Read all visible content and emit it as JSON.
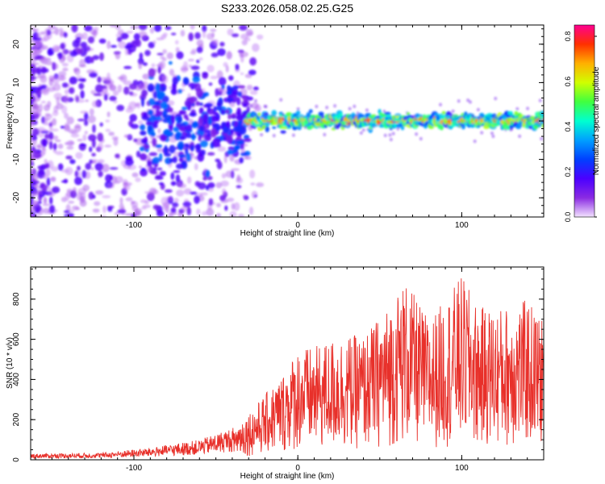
{
  "title": "S233.2026.058.02.25.G25",
  "colormap": [
    "#ffffff",
    "#d9a6ff",
    "#8a2be2",
    "#4b00ff",
    "#0040ff",
    "#00a0ff",
    "#00ffd0",
    "#40ff40",
    "#d0ff00",
    "#ffb000",
    "#ff3000",
    "#ff0090"
  ],
  "series_color": "#e8302a",
  "chart_data": [
    {
      "type": "heatmap",
      "title": "S233.2026.058.02.25.G25",
      "xlabel": "Height of straight line (km)",
      "ylabel": "Frequency (Hz)",
      "xlim": [
        -163,
        150
      ],
      "ylim": [
        -25,
        25
      ],
      "xticks": [
        -100,
        0,
        100
      ],
      "xtick_labels": [
        "-100",
        "0",
        "100"
      ],
      "yticks": [
        -20,
        -10,
        0,
        10,
        20
      ],
      "ytick_labels": [
        "-20",
        "-10",
        "0",
        "10",
        "20"
      ],
      "colorbar": {
        "label": "Normalized spectral amplitude",
        "range": [
          0,
          0.85
        ],
        "ticks": [
          0.0,
          0.2,
          0.4,
          0.6,
          0.8
        ],
        "tick_labels": [
          "0.0",
          "0.2",
          "0.4",
          "0.6",
          "0.8"
        ]
      },
      "description_of_values": [
        {
          "x_range": [
            -163,
            -40
          ],
          "frequency_spread_hz": 25,
          "amplitude": 0.1
        },
        {
          "x_range": [
            -40,
            -30
          ],
          "frequency_spread_hz": 8,
          "amplitude": 0.25
        },
        {
          "x_range": [
            -30,
            150
          ],
          "frequency_center_hz": 0,
          "frequency_spread_hz": 2,
          "amplitude": 0.6
        }
      ]
    },
    {
      "type": "line",
      "xlabel": "Height of straight line (km)",
      "ylabel": "SNR (10 * v/v)",
      "xlim": [
        -163,
        150
      ],
      "ylim": [
        0,
        960
      ],
      "xticks": [
        -100,
        0,
        100
      ],
      "xtick_labels": [
        "-100",
        "0",
        "100"
      ],
      "yticks": [
        0,
        200,
        400,
        600,
        800
      ],
      "ytick_labels": [
        "0",
        "200",
        "400",
        "600",
        "800"
      ],
      "envelope": {
        "x": [
          -163,
          -120,
          -90,
          -60,
          -40,
          -25,
          -10,
          0,
          10,
          25,
          40,
          55,
          65,
          80,
          90,
          100,
          110,
          125,
          140,
          150
        ],
        "y": [
          30,
          35,
          60,
          100,
          160,
          280,
          420,
          560,
          560,
          620,
          620,
          760,
          900,
          700,
          800,
          920,
          760,
          760,
          800,
          700
        ]
      }
    }
  ]
}
